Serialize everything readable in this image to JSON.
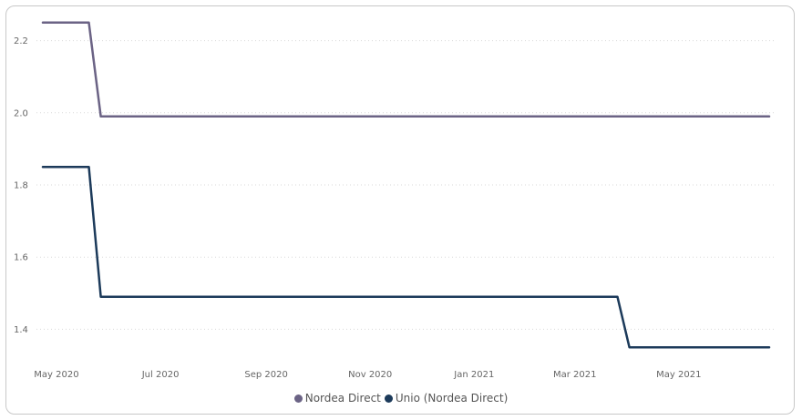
{
  "chart_data": {
    "type": "line",
    "title": "",
    "xlabel": "",
    "ylabel": "",
    "x_ticks": [
      "May 2020",
      "Jul 2020",
      "Sep 2020",
      "Nov 2020",
      "Jan 2021",
      "Mar 2021",
      "May 2021"
    ],
    "x_tick_dates": [
      "2020-05-01",
      "2020-07-01",
      "2020-09-01",
      "2020-11-01",
      "2021-01-01",
      "2021-03-01",
      "2021-05-01"
    ],
    "x_range": [
      "2020-04-23",
      "2021-06-23"
    ],
    "y_ticks": [
      1.4,
      1.6,
      1.8,
      2.0,
      2.2
    ],
    "ylim": [
      1.3,
      2.3
    ],
    "grid": "horizontal dotted",
    "legend_position": "bottom-center",
    "series": [
      {
        "name": "Nordea Direct",
        "color": "#6b6385",
        "points": [
          {
            "x": "2020-04-23",
            "y": 2.25
          },
          {
            "x": "2020-05-20",
            "y": 2.25
          },
          {
            "x": "2020-05-27",
            "y": 1.99
          },
          {
            "x": "2021-06-23",
            "y": 1.99
          }
        ]
      },
      {
        "name": "Unio (Nordea Direct)",
        "color": "#1c3a5a",
        "points": [
          {
            "x": "2020-04-23",
            "y": 1.85
          },
          {
            "x": "2020-05-20",
            "y": 1.85
          },
          {
            "x": "2020-05-27",
            "y": 1.49
          },
          {
            "x": "2021-03-26",
            "y": 1.49
          },
          {
            "x": "2021-04-02",
            "y": 1.35
          },
          {
            "x": "2021-06-23",
            "y": 1.35
          }
        ]
      }
    ]
  }
}
